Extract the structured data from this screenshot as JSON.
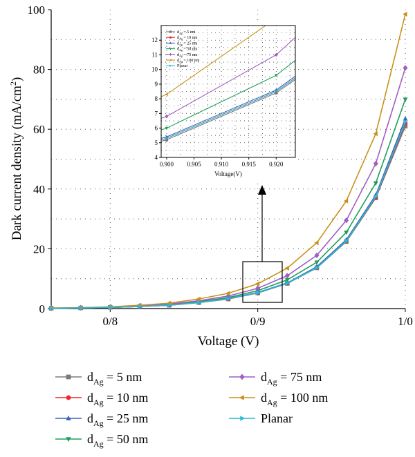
{
  "chart_data": {
    "type": "line",
    "xlabel": "Voltage (V)",
    "ylabel": "Dark current density (mA/cm²)",
    "ylabel_parts": {
      "main": "Dark current density (mA/cm",
      "sup": "2",
      "close": ")"
    },
    "xlim": [
      0.76,
      1.0
    ],
    "ylim": [
      0,
      100
    ],
    "x_ticks": [
      0.8,
      0.9,
      1.0
    ],
    "x_tick_labels": [
      "0/8",
      "0/9",
      "1/0"
    ],
    "y_ticks": [
      0,
      20,
      40,
      60,
      80,
      100
    ],
    "y_tick_labels": [
      "0",
      "20",
      "40",
      "60",
      "80",
      "100"
    ],
    "grid": true,
    "legend_position": "bottom",
    "x": [
      0.76,
      0.78,
      0.8,
      0.82,
      0.84,
      0.86,
      0.88,
      0.9,
      0.92,
      0.94,
      0.96,
      0.98,
      1.0
    ],
    "series": [
      {
        "name": "d_Ag = 5 nm",
        "sub": "Ag",
        "label_pre": "d",
        "label_post": " = 5 nm",
        "color": "#7a7a7a",
        "marker": "square",
        "values": [
          0.1,
          0.2,
          0.4,
          0.7,
          1.1,
          2.0,
          3.2,
          5.2,
          8.4,
          13.6,
          22.4,
          37.0,
          61.0
        ]
      },
      {
        "name": "d_Ag = 10 nm",
        "sub": "Ag",
        "label_pre": "d",
        "label_post": " = 10 nm",
        "color": "#e8292f",
        "marker": "circle",
        "values": [
          0.1,
          0.2,
          0.4,
          0.7,
          1.1,
          2.0,
          3.2,
          5.3,
          8.5,
          13.8,
          22.6,
          37.3,
          62.0
        ]
      },
      {
        "name": "d_Ag = 25 nm",
        "sub": "Ag",
        "label_pre": "d",
        "label_post": " = 25 nm",
        "color": "#3a62b5",
        "marker": "triangle-up",
        "values": [
          0.1,
          0.2,
          0.4,
          0.7,
          1.2,
          2.1,
          3.4,
          5.4,
          8.6,
          14.0,
          23.0,
          38.0,
          63.5
        ]
      },
      {
        "name": "d_Ag = 50 nm",
        "sub": "Ag",
        "label_pre": "d",
        "label_post": " = 50 nm",
        "color": "#1e9e5a",
        "marker": "triangle-down",
        "values": [
          0.1,
          0.2,
          0.5,
          0.8,
          1.3,
          2.3,
          3.7,
          6.0,
          9.6,
          15.5,
          25.5,
          42.0,
          70.0
        ]
      },
      {
        "name": "d_Ag = 75 nm",
        "sub": "Ag",
        "label_pre": "d",
        "label_post": " = 75 nm",
        "color": "#a05ec0",
        "marker": "diamond",
        "values": [
          0.1,
          0.3,
          0.5,
          0.9,
          1.5,
          2.6,
          4.2,
          6.8,
          11.0,
          17.8,
          29.5,
          48.5,
          80.5
        ]
      },
      {
        "name": "d_Ag = 100 nm",
        "sub": "Ag",
        "label_pre": "d",
        "label_post": " = 100 nm",
        "color": "#c8921a",
        "marker": "triangle-left",
        "values": [
          0.2,
          0.3,
          0.6,
          1.1,
          1.8,
          3.2,
          5.1,
          8.3,
          13.5,
          22.0,
          36.0,
          58.5,
          98.5
        ]
      },
      {
        "name": "Planar",
        "sub": "",
        "label_pre": "Planar",
        "label_post": "",
        "color": "#2bb8d6",
        "marker": "triangle-right",
        "values": [
          0.1,
          0.2,
          0.4,
          0.7,
          1.1,
          2.0,
          3.3,
          5.3,
          8.5,
          13.7,
          22.6,
          37.5,
          62.5
        ]
      }
    ],
    "inset": {
      "xlabel": "Voltage(V)",
      "xlim": [
        0.899,
        0.9235
      ],
      "ylim": [
        4,
        13
      ],
      "x_ticks": [
        0.9,
        0.905,
        0.91,
        0.915,
        0.92
      ],
      "x_tick_labels": [
        "0.900",
        "0.905",
        "0.910",
        "0.915",
        "0.920"
      ],
      "y_ticks": [
        4,
        5,
        6,
        7,
        8,
        9,
        10,
        11,
        12
      ],
      "y_tick_labels": [
        "4",
        "5",
        "6",
        "7",
        "8",
        "9",
        "10",
        "11",
        "12"
      ],
      "legend_labels": [
        "d_Ag = 5 nm",
        "d_Ag = 10 nm",
        "d_Ag = 25 nm",
        "d_Ag = 50 nm",
        "d_Ag = 75 nm",
        "d_Ag = 100 nm",
        "Planar"
      ]
    }
  }
}
